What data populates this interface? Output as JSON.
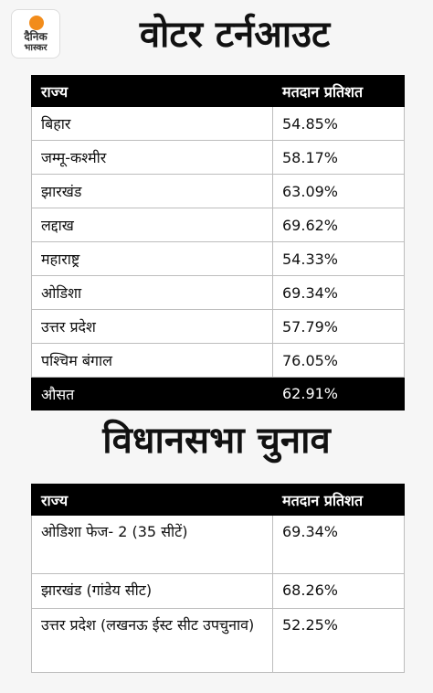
{
  "logo": {
    "line1": "दैनिक",
    "line2": "भास्कर"
  },
  "section1": {
    "title": "वोटर टर्नआउट",
    "headers": [
      "राज्य",
      "मतदान प्रतिशत"
    ],
    "rows": [
      [
        "बिहार",
        "54.85%"
      ],
      [
        "जम्मू-कश्मीर",
        "58.17%"
      ],
      [
        "झारखंड",
        "63.09%"
      ],
      [
        "लद्दाख",
        "69.62%"
      ],
      [
        "महाराष्ट्र",
        "54.33%"
      ],
      [
        "ओडिशा",
        "69.34%"
      ],
      [
        "उत्तर प्रदेश",
        "57.79%"
      ],
      [
        "पश्चिम बंगाल",
        "76.05%"
      ]
    ],
    "footer": [
      "औसत",
      "62.91%"
    ]
  },
  "section2": {
    "title": "विधानसभा चुनाव",
    "headers": [
      "राज्य",
      "मतदान प्रतिशत"
    ],
    "rows": [
      [
        "ओडिशा फेज- 2 (35 सीटें)",
        "69.34%"
      ],
      [
        "झारखंड (गांडेय सीट)",
        "68.26%"
      ],
      [
        "उत्तर प्रदेश (लखनऊ ईस्ट सीट उपचुनाव)",
        "52.25%"
      ]
    ]
  }
}
